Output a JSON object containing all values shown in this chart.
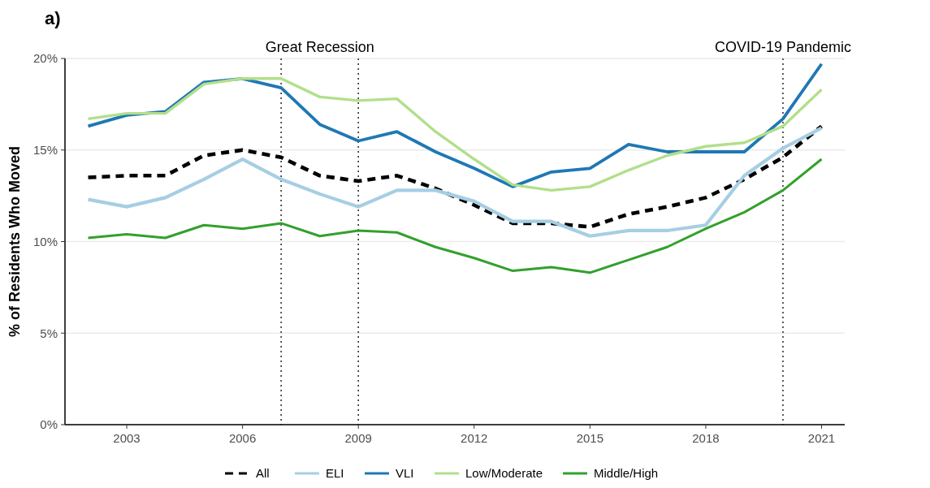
{
  "chart_data": {
    "type": "line",
    "title": "a)",
    "ylabel": "% of Residents Who Moved",
    "x": [
      2002,
      2003,
      2004,
      2005,
      2006,
      2007,
      2008,
      2009,
      2010,
      2011,
      2012,
      2013,
      2014,
      2015,
      2016,
      2017,
      2018,
      2019,
      2020,
      2021
    ],
    "series": [
      {
        "name": "All",
        "color": "#000000",
        "line_style": "dashed",
        "values": [
          13.5,
          13.6,
          13.6,
          14.7,
          15.0,
          14.6,
          13.6,
          13.3,
          13.6,
          12.9,
          12.0,
          11.0,
          11.0,
          10.8,
          11.5,
          11.9,
          12.4,
          13.4,
          14.6,
          16.3
        ]
      },
      {
        "name": "ELI",
        "color": "#a6cee3",
        "values": [
          12.3,
          11.9,
          12.4,
          13.4,
          14.5,
          13.4,
          12.6,
          11.9,
          12.8,
          12.8,
          12.2,
          11.1,
          11.1,
          10.3,
          10.6,
          10.6,
          10.9,
          13.6,
          15.1,
          16.2
        ]
      },
      {
        "name": "VLI",
        "color": "#1f78b4",
        "values": [
          16.3,
          16.9,
          17.1,
          18.7,
          18.9,
          18.4,
          16.4,
          15.5,
          16.0,
          14.9,
          14.0,
          13.0,
          13.8,
          14.0,
          15.3,
          14.9,
          14.9,
          14.9,
          16.7,
          19.7
        ]
      },
      {
        "name": "Low/Moderate",
        "color": "#b2df8a",
        "values": [
          16.7,
          17.0,
          17.0,
          18.6,
          18.9,
          18.9,
          17.9,
          17.7,
          17.8,
          16.0,
          14.5,
          13.1,
          12.8,
          13.0,
          13.9,
          14.7,
          15.2,
          15.4,
          16.3,
          18.3
        ]
      },
      {
        "name": "Middle/High",
        "color": "#33a02c",
        "values": [
          10.2,
          10.4,
          10.2,
          10.9,
          10.7,
          11.0,
          10.3,
          10.6,
          10.5,
          9.7,
          9.1,
          8.4,
          8.6,
          8.3,
          9.0,
          9.7,
          10.7,
          11.6,
          12.8,
          14.5
        ]
      }
    ],
    "xlim": [
      2001.4,
      2021.6
    ],
    "xticks": [
      2003,
      2006,
      2009,
      2012,
      2015,
      2018,
      2021
    ],
    "ylim": [
      0,
      20
    ],
    "yticks": [
      {
        "value": 0,
        "label": "0%"
      },
      {
        "value": 5,
        "label": "5%"
      },
      {
        "value": 10,
        "label": "10%"
      },
      {
        "value": 15,
        "label": "15%"
      },
      {
        "value": 20,
        "label": "20%"
      }
    ],
    "grid": "y",
    "legend": "bottom",
    "marker": "none",
    "ref_lines": [
      {
        "axis": "x",
        "value": 2007,
        "label": "Great Recession",
        "line_style": "dotted"
      },
      {
        "axis": "x",
        "value": 2009,
        "label": null,
        "line_style": "dotted"
      },
      {
        "axis": "x",
        "value": 2020,
        "label": "COVID-19 Pandemic",
        "line_style": "dotted"
      }
    ]
  }
}
